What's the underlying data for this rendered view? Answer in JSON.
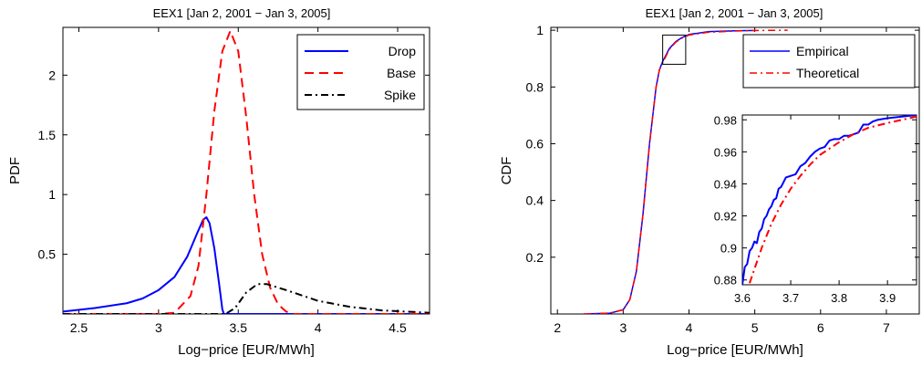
{
  "chart_data": [
    {
      "type": "line",
      "title": "EEX1 [Jan 2, 2001 − Jan 3, 2005]",
      "xlabel": "Log−price [EUR/MWh]",
      "ylabel": "PDF",
      "xlim": [
        2.4,
        4.7
      ],
      "ylim": [
        0,
        2.4
      ],
      "xticks": [
        "2.5",
        "3",
        "3.5",
        "4",
        "4.5"
      ],
      "yticks": [
        "0.5",
        "1",
        "1.5",
        "2"
      ],
      "legend_position": "top-right",
      "grid": false,
      "series": [
        {
          "name": "Drop",
          "color": "#0000ff",
          "style": "solid",
          "points": [
            [
              2.4,
              0.02
            ],
            [
              2.6,
              0.05
            ],
            [
              2.8,
              0.09
            ],
            [
              2.9,
              0.13
            ],
            [
              3.0,
              0.2
            ],
            [
              3.1,
              0.31
            ],
            [
              3.18,
              0.48
            ],
            [
              3.24,
              0.67
            ],
            [
              3.28,
              0.79
            ],
            [
              3.3,
              0.81
            ],
            [
              3.32,
              0.76
            ],
            [
              3.35,
              0.55
            ],
            [
              3.38,
              0.25
            ],
            [
              3.4,
              0.04
            ],
            [
              3.41,
              0.0
            ],
            [
              4.7,
              0.0
            ]
          ]
        },
        {
          "name": "Base",
          "color": "#ff0000",
          "style": "dashed",
          "points": [
            [
              2.4,
              0.0
            ],
            [
              3.0,
              0.0
            ],
            [
              3.1,
              0.01
            ],
            [
              3.2,
              0.15
            ],
            [
              3.25,
              0.4
            ],
            [
              3.3,
              1.0
            ],
            [
              3.35,
              1.7
            ],
            [
              3.4,
              2.2
            ],
            [
              3.45,
              2.37
            ],
            [
              3.5,
              2.2
            ],
            [
              3.55,
              1.65
            ],
            [
              3.6,
              1.0
            ],
            [
              3.65,
              0.5
            ],
            [
              3.7,
              0.22
            ],
            [
              3.75,
              0.08
            ],
            [
              3.8,
              0.02
            ],
            [
              3.85,
              0.0
            ],
            [
              4.7,
              0.0
            ]
          ]
        },
        {
          "name": "Spike",
          "color": "#000000",
          "style": "dashdot",
          "points": [
            [
              2.4,
              0.0
            ],
            [
              3.42,
              0.0
            ],
            [
              3.48,
              0.05
            ],
            [
              3.55,
              0.18
            ],
            [
              3.62,
              0.25
            ],
            [
              3.68,
              0.25
            ],
            [
              3.8,
              0.2
            ],
            [
              4.0,
              0.11
            ],
            [
              4.2,
              0.06
            ],
            [
              4.4,
              0.03
            ],
            [
              4.7,
              0.01
            ]
          ]
        }
      ]
    },
    {
      "type": "line",
      "title": "EEX1 [Jan 2, 2001 − Jan 3, 2005]",
      "xlabel": "Log−price [EUR/MWh]",
      "ylabel": "CDF",
      "xlim": [
        1.9,
        7.5
      ],
      "ylim": [
        0,
        1.01
      ],
      "xticks": [
        "2",
        "3",
        "4",
        "5",
        "6",
        "7"
      ],
      "yticks": [
        "0.2",
        "0.4",
        "0.6",
        "0.8",
        "1"
      ],
      "legend_position": "top-right",
      "grid": false,
      "zoom_box": {
        "x": [
          3.6,
          3.95
        ],
        "y": [
          0.88,
          0.983
        ]
      },
      "series": [
        {
          "name": "Empirical",
          "color": "#0000ff",
          "style": "solid",
          "points": [
            [
              2.4,
              0.0
            ],
            [
              2.8,
              0.003
            ],
            [
              3.0,
              0.015
            ],
            [
              3.1,
              0.05
            ],
            [
              3.2,
              0.15
            ],
            [
              3.3,
              0.35
            ],
            [
              3.4,
              0.6
            ],
            [
              3.5,
              0.8
            ],
            [
              3.55,
              0.86
            ],
            [
              3.6,
              0.89
            ],
            [
              3.7,
              0.935
            ],
            [
              3.8,
              0.96
            ],
            [
              3.9,
              0.975
            ],
            [
              4.0,
              0.985
            ],
            [
              4.3,
              0.995
            ],
            [
              4.7,
              0.998
            ],
            [
              5.0,
              0.999
            ]
          ]
        },
        {
          "name": "Theoretical",
          "color": "#ff0000",
          "style": "dashdot",
          "points": [
            [
              2.4,
              0.0
            ],
            [
              2.8,
              0.003
            ],
            [
              3.0,
              0.015
            ],
            [
              3.1,
              0.05
            ],
            [
              3.2,
              0.15
            ],
            [
              3.3,
              0.35
            ],
            [
              3.4,
              0.6
            ],
            [
              3.5,
              0.8
            ],
            [
              3.55,
              0.86
            ],
            [
              3.6,
              0.885
            ],
            [
              3.7,
              0.932
            ],
            [
              3.8,
              0.958
            ],
            [
              3.9,
              0.973
            ],
            [
              4.0,
              0.983
            ],
            [
              4.3,
              0.993
            ],
            [
              4.7,
              0.997
            ],
            [
              5.0,
              0.999
            ],
            [
              5.5,
              1.0
            ]
          ]
        }
      ],
      "inset": {
        "xlim": [
          3.6,
          3.96
        ],
        "ylim": [
          0.877,
          0.983
        ],
        "xticks": [
          "3.6",
          "3.7",
          "3.8",
          "3.9"
        ],
        "yticks": [
          "0.88",
          "0.9",
          "0.92",
          "0.94",
          "0.96",
          "0.98"
        ],
        "series": [
          {
            "name": "Empirical",
            "color": "#0000ff",
            "style": "solid",
            "points": [
              [
                3.6,
                0.877
              ],
              [
                3.605,
                0.888
              ],
              [
                3.61,
                0.89
              ],
              [
                3.615,
                0.898
              ],
              [
                3.62,
                0.9
              ],
              [
                3.625,
                0.904
              ],
              [
                3.63,
                0.903
              ],
              [
                3.635,
                0.91
              ],
              [
                3.64,
                0.912
              ],
              [
                3.645,
                0.918
              ],
              [
                3.65,
                0.92
              ],
              [
                3.655,
                0.924
              ],
              [
                3.66,
                0.926
              ],
              [
                3.665,
                0.93
              ],
              [
                3.67,
                0.931
              ],
              [
                3.675,
                0.937
              ],
              [
                3.68,
                0.938
              ],
              [
                3.69,
                0.944
              ],
              [
                3.7,
                0.945
              ],
              [
                3.71,
                0.946
              ],
              [
                3.72,
                0.951
              ],
              [
                3.73,
                0.953
              ],
              [
                3.74,
                0.957
              ],
              [
                3.75,
                0.96
              ],
              [
                3.76,
                0.962
              ],
              [
                3.77,
                0.963
              ],
              [
                3.78,
                0.967
              ],
              [
                3.79,
                0.968
              ],
              [
                3.8,
                0.968
              ],
              [
                3.81,
                0.97
              ],
              [
                3.82,
                0.97
              ],
              [
                3.83,
                0.971
              ],
              [
                3.84,
                0.972
              ],
              [
                3.85,
                0.977
              ],
              [
                3.86,
                0.977
              ],
              [
                3.87,
                0.979
              ],
              [
                3.88,
                0.98
              ],
              [
                3.9,
                0.981
              ],
              [
                3.93,
                0.982
              ],
              [
                3.96,
                0.983
              ]
            ]
          },
          {
            "name": "Theoretical",
            "color": "#ff0000",
            "style": "dashdot",
            "points": [
              [
                3.615,
                0.878
              ],
              [
                3.64,
                0.9
              ],
              [
                3.66,
                0.915
              ],
              [
                3.68,
                0.927
              ],
              [
                3.7,
                0.937
              ],
              [
                3.72,
                0.945
              ],
              [
                3.74,
                0.952
              ],
              [
                3.76,
                0.958
              ],
              [
                3.78,
                0.962
              ],
              [
                3.8,
                0.966
              ],
              [
                3.83,
                0.971
              ],
              [
                3.86,
                0.975
              ],
              [
                3.9,
                0.978
              ],
              [
                3.96,
                0.982
              ]
            ]
          }
        ]
      }
    }
  ]
}
